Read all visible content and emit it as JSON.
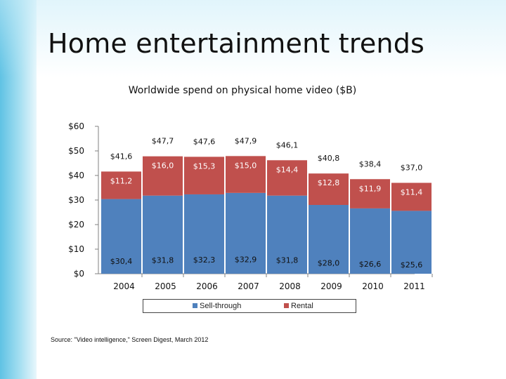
{
  "slide": {
    "title": "Home entertainment trends"
  },
  "source": "Source: \"Video intelligence,\" Screen Digest, March 2012",
  "colors": {
    "sell_through": "#4f81bd",
    "rental": "#c0504d"
  },
  "chart_data": {
    "type": "bar",
    "stacked": true,
    "title": "Worldwide spend on physical home video ($B)",
    "xlabel": "",
    "ylabel": "",
    "categories": [
      "2004",
      "2005",
      "2006",
      "2007",
      "2008",
      "2009",
      "2010",
      "2011"
    ],
    "yticks": [
      "$0",
      "$10",
      "$20",
      "$30",
      "$40",
      "$50",
      "$60"
    ],
    "ylim": [
      0,
      60
    ],
    "series": [
      {
        "name": "Sell-through",
        "values": [
          30.4,
          31.8,
          32.3,
          32.9,
          31.8,
          28.0,
          26.6,
          25.6
        ],
        "labels": [
          "$30,4",
          "$31,8",
          "$32,3",
          "$32,9",
          "$31,8",
          "$28,0",
          "$26,6",
          "$25,6"
        ]
      },
      {
        "name": "Rental",
        "values": [
          11.2,
          16.0,
          15.3,
          15.0,
          14.4,
          12.8,
          11.9,
          11.4
        ],
        "labels": [
          "$11,2",
          "$16,0",
          "$15,3",
          "$15,0",
          "$14,4",
          "$12,8",
          "$11,9",
          "$11,4"
        ]
      }
    ],
    "totals": [
      41.6,
      47.7,
      47.6,
      47.9,
      46.1,
      40.8,
      38.4,
      37.0
    ],
    "total_labels": [
      "$41,6",
      "$47,7",
      "$47,6",
      "$47,9",
      "$46,1",
      "$40,8",
      "$38,4",
      "$37,0"
    ],
    "legend_position": "bottom",
    "grid": false
  }
}
